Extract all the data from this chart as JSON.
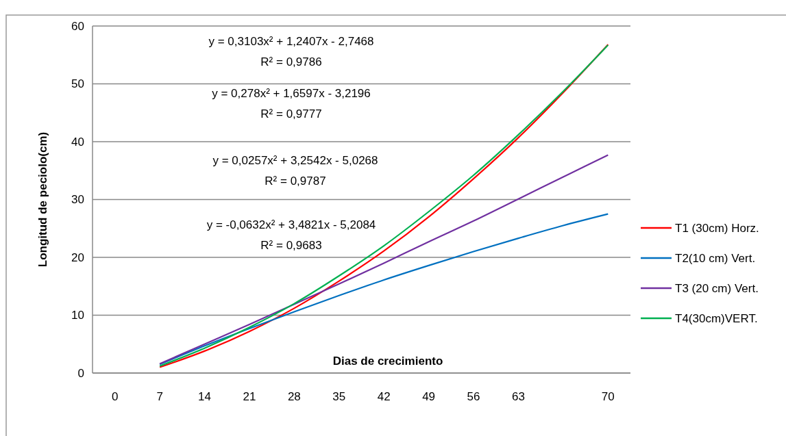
{
  "chart_data": {
    "type": "line",
    "xlabel": "Dias de crecimiento",
    "ylabel": "Longitud de peciolo(cm)",
    "categories": [
      "0",
      "7",
      "14",
      "21",
      "28",
      "35",
      "42",
      "49",
      "56",
      "63",
      null,
      "70"
    ],
    "series": [
      {
        "name": "T1 (30cm) Horz.",
        "color": "#ff0000",
        "values": [
          null,
          1.0,
          3.8,
          7.2,
          11.2,
          15.9,
          21.1,
          27.0,
          33.6,
          40.7,
          48.5,
          56.8
        ]
      },
      {
        "name": "T2(10 cm) Vert.",
        "color": "#0070c0",
        "values": [
          null,
          1.5,
          4.7,
          7.7,
          10.6,
          13.4,
          16.1,
          18.6,
          21.0,
          23.3,
          25.5,
          27.5
        ]
      },
      {
        "name": "T3 (20 cm) Vert.",
        "color": "#7030a0",
        "values": [
          null,
          1.6,
          5.0,
          8.4,
          11.9,
          15.4,
          19.0,
          22.7,
          26.3,
          30.1,
          33.9,
          37.7
        ]
      },
      {
        "name": "T4(30cm)VERT.",
        "color": "#00b050",
        "values": [
          null,
          1.2,
          4.3,
          7.9,
          12.0,
          16.8,
          22.0,
          27.9,
          34.2,
          41.2,
          48.7,
          56.7
        ]
      }
    ],
    "ylim": [
      0,
      60
    ],
    "yticks": [
      0,
      10,
      20,
      30,
      40,
      50,
      60
    ],
    "grid": "y",
    "legend": "right",
    "line_style": "solid",
    "marker": "none",
    "annotations": [
      "y = 0,3103x² + 1,2407x - 2,7468",
      "R² = 0,9786",
      "y = 0,278x² + 1,6597x - 3,2196",
      "R² = 0,9777",
      "y = 0,0257x² + 3,2542x - 5,0268",
      "R² = 0,9787",
      "y = -0,0632x² + 3,4821x - 5,2084",
      "R² = 0,9683"
    ]
  }
}
